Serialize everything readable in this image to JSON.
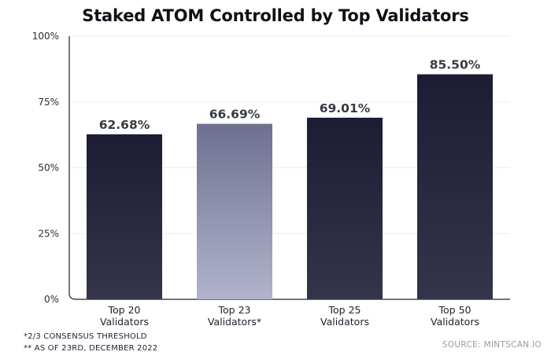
{
  "chart_data": {
    "type": "bar",
    "title": "Staked ATOM Controlled by Top Validators",
    "categories": [
      [
        "Top 20",
        "Validators"
      ],
      [
        "Top 23",
        "Validators*"
      ],
      [
        "Top 25",
        "Validators"
      ],
      [
        "Top 50",
        "Validators"
      ]
    ],
    "values": [
      62.68,
      66.69,
      69.01,
      85.5
    ],
    "data_labels": [
      "62.68%",
      "66.69%",
      "69.01%",
      "85.50%"
    ],
    "highlighted_index": 1,
    "ylim": [
      0,
      100
    ],
    "yticks": [
      0,
      25,
      50,
      75,
      100
    ],
    "ytick_labels": [
      "0%",
      "25%",
      "50%",
      "75%",
      "100%"
    ],
    "xlabel": "",
    "ylabel": "",
    "colors": {
      "bar_top": "#1c1c35",
      "bar_bottom": "#34344a",
      "highlight_top": "#6e7090",
      "highlight_bottom": "#b1b3cd",
      "grid": "#ececf0",
      "axis": "#222230"
    }
  },
  "footnotes": [
    "*2/3 CONSENSUS THRESHOLD",
    "** AS OF 23RD, DECEMBER 2022"
  ],
  "source": "SOURCE: MINTSCAN.IO"
}
